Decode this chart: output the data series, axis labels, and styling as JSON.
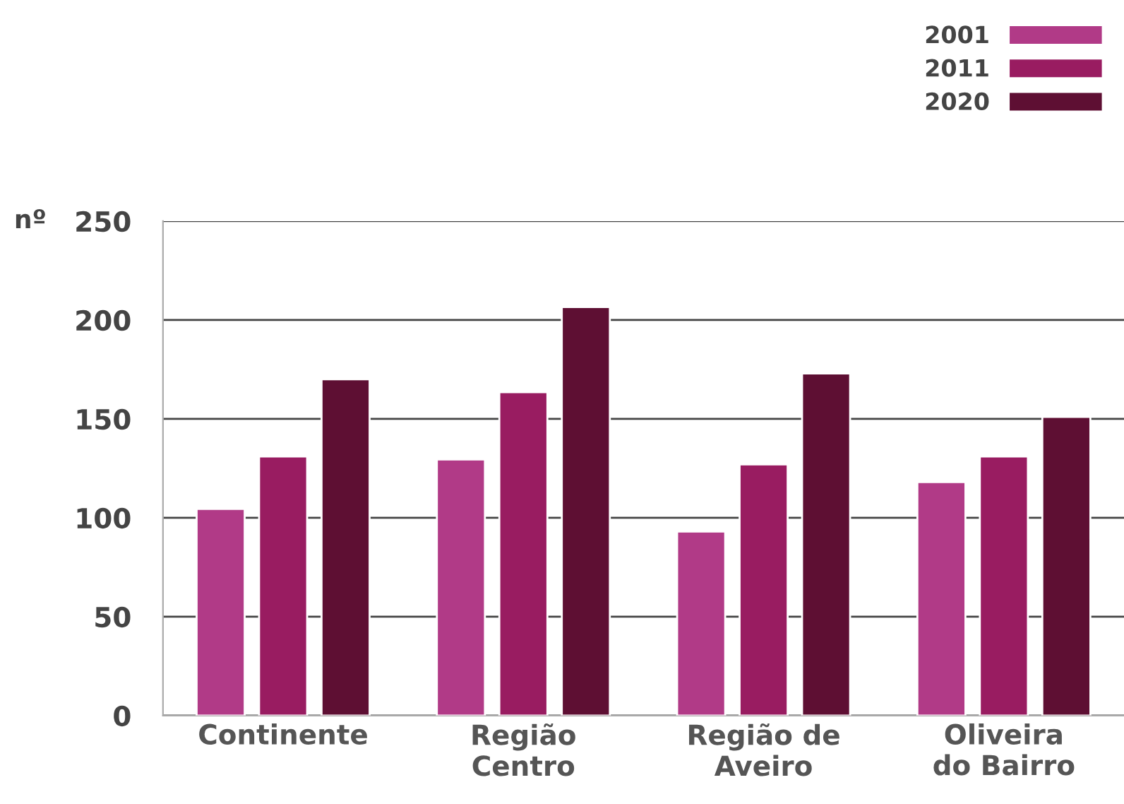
{
  "chart_data": {
    "type": "bar",
    "ylabel": "nº",
    "categories": [
      "Continente",
      "Região\nCentro",
      "Região de\nAveiro",
      "Oliveira\ndo Bairro"
    ],
    "series": [
      {
        "name": "2001",
        "color": "#b13a87",
        "values": [
          104.5,
          129.5,
          93,
          118
        ]
      },
      {
        "name": "2011",
        "color": "#991c61",
        "values": [
          131,
          163.5,
          127,
          131
        ]
      },
      {
        "name": "2020",
        "color": "#5e0f33",
        "values": [
          170,
          206.5,
          173,
          151
        ]
      }
    ],
    "ylim": [
      0,
      250
    ],
    "yticks": [
      0,
      50,
      100,
      150,
      200,
      250
    ],
    "grid": "y",
    "legend": "top right"
  }
}
